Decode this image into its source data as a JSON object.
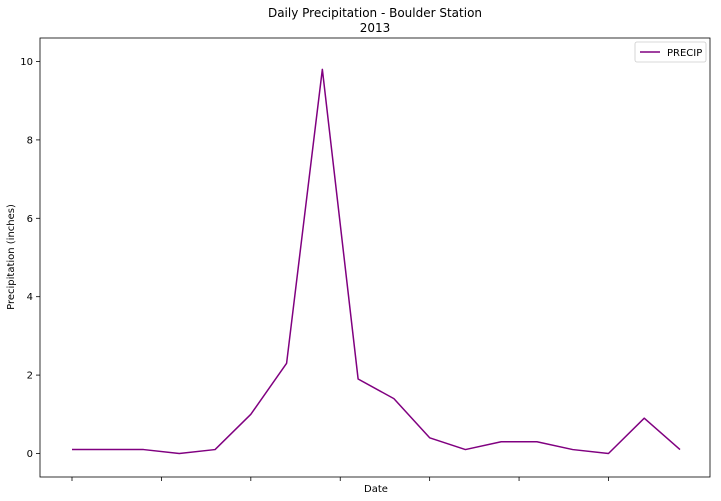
{
  "chart_data": {
    "type": "line",
    "title": "Daily Precipitation - Boulder Station",
    "subtitle": "2013",
    "xlabel": "Date",
    "ylabel": "Precipitation (inches)",
    "ylim": [
      -0.6,
      10.6
    ],
    "yticks": [
      0,
      2,
      4,
      6,
      8,
      10
    ],
    "grid": false,
    "legend": {
      "placement": "top-right",
      "entries": [
        "PRECIP"
      ]
    },
    "series": [
      {
        "name": "PRECIP",
        "color": "#800080",
        "values": [
          0.1,
          0.1,
          0.1,
          0.0,
          0.1,
          1.0,
          2.3,
          9.8,
          1.9,
          1.4,
          0.4,
          0.1,
          0.3,
          0.3,
          0.1,
          0.0,
          0.9,
          0.1
        ]
      }
    ]
  }
}
